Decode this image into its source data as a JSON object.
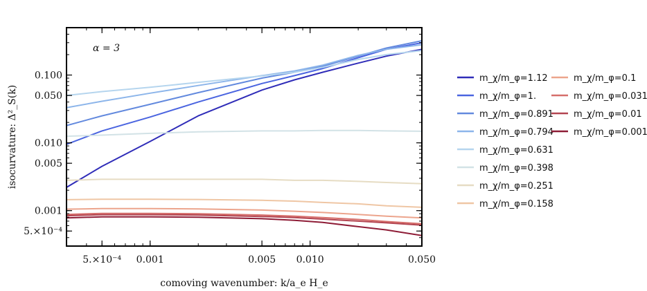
{
  "chart_data": {
    "type": "line",
    "title": "",
    "xlabel": "comoving wavenumber: k/a_e H_e",
    "ylabel": "isocurvature: Δ²_S(k)",
    "x_scale": "log",
    "y_scale": "log",
    "xlim": [
      0.0003,
      0.05
    ],
    "ylim": [
      0.0003,
      0.5
    ],
    "grid": false,
    "legend_position": "right",
    "annotation": "α = 3",
    "x_ticks": [
      {
        "value": 0.0005,
        "label": "5.×10⁻⁴"
      },
      {
        "value": 0.001,
        "label": "0.001"
      },
      {
        "value": 0.005,
        "label": "0.005"
      },
      {
        "value": 0.01,
        "label": "0.010"
      },
      {
        "value": 0.05,
        "label": "0.050"
      }
    ],
    "y_ticks": [
      {
        "value": 0.0005,
        "label": "5.×10⁻⁴"
      },
      {
        "value": 0.001,
        "label": "0.001"
      },
      {
        "value": 0.005,
        "label": "0.005"
      },
      {
        "value": 0.01,
        "label": "0.010"
      },
      {
        "value": 0.05,
        "label": "0.050"
      },
      {
        "value": 0.1,
        "label": "0.100"
      }
    ],
    "x": [
      0.0003,
      0.0005,
      0.001,
      0.002,
      0.005,
      0.008,
      0.012,
      0.02,
      0.03,
      0.05
    ],
    "series": [
      {
        "name": "m_χ/m_φ=1.12",
        "color": "#2f2cb8",
        "values": [
          0.0022,
          0.0045,
          0.0105,
          0.025,
          0.06,
          0.085,
          0.11,
          0.15,
          0.19,
          0.24
        ]
      },
      {
        "name": "m_χ/m_φ=1.",
        "color": "#4a64e0",
        "values": [
          0.0095,
          0.015,
          0.024,
          0.04,
          0.075,
          0.098,
          0.125,
          0.18,
          0.24,
          0.3
        ]
      },
      {
        "name": "m_χ/m_φ=0.891",
        "color": "#6289de",
        "values": [
          0.018,
          0.025,
          0.037,
          0.055,
          0.09,
          0.11,
          0.135,
          0.19,
          0.25,
          0.32
        ]
      },
      {
        "name": "m_χ/m_φ=0.794",
        "color": "#8cb5ea",
        "values": [
          0.033,
          0.041,
          0.054,
          0.07,
          0.098,
          0.115,
          0.14,
          0.195,
          0.24,
          0.28
        ]
      },
      {
        "name": "m_χ/m_φ=0.631",
        "color": "#b5d5ee",
        "values": [
          0.05,
          0.057,
          0.066,
          0.078,
          0.097,
          0.11,
          0.13,
          0.17,
          0.2,
          0.23
        ]
      },
      {
        "name": "m_χ/m_φ=0.398",
        "color": "#d2e2e6",
        "values": [
          0.0125,
          0.013,
          0.0138,
          0.0145,
          0.015,
          0.015,
          0.0152,
          0.0152,
          0.015,
          0.0148
        ]
      },
      {
        "name": "m_χ/m_φ=0.251",
        "color": "#e6dcc3",
        "values": [
          0.0028,
          0.0029,
          0.0029,
          0.0029,
          0.0029,
          0.0028,
          0.0028,
          0.0027,
          0.0026,
          0.0025
        ]
      },
      {
        "name": "m_χ/m_φ=0.158",
        "color": "#efc6a4",
        "values": [
          0.00145,
          0.00147,
          0.00147,
          0.00146,
          0.00142,
          0.00138,
          0.00132,
          0.00126,
          0.00118,
          0.00112
        ]
      },
      {
        "name": "m_χ/m_φ=0.1",
        "color": "#eca48c",
        "values": [
          0.00105,
          0.00107,
          0.00107,
          0.00106,
          0.00102,
          0.00098,
          0.00094,
          0.00088,
          0.00083,
          0.00078
        ]
      },
      {
        "name": "m_χ/m_φ=0.0316",
        "color": "#d66e6a",
        "values": [
          0.00088,
          0.00091,
          0.00091,
          0.0009,
          0.00086,
          0.00083,
          0.00079,
          0.00074,
          0.00069,
          0.00064
        ]
      },
      {
        "name": "m_χ/m_φ=0.01",
        "color": "#b34450",
        "values": [
          0.00084,
          0.00087,
          0.00087,
          0.00086,
          0.00082,
          0.00079,
          0.00075,
          0.0007,
          0.00066,
          0.00061
        ]
      },
      {
        "name": "m_χ/m_φ=0.001",
        "color": "#8e1c36",
        "values": [
          0.00078,
          0.00081,
          0.00081,
          0.0008,
          0.00076,
          0.00072,
          0.00067,
          0.00058,
          0.00052,
          0.00043
        ]
      }
    ]
  }
}
